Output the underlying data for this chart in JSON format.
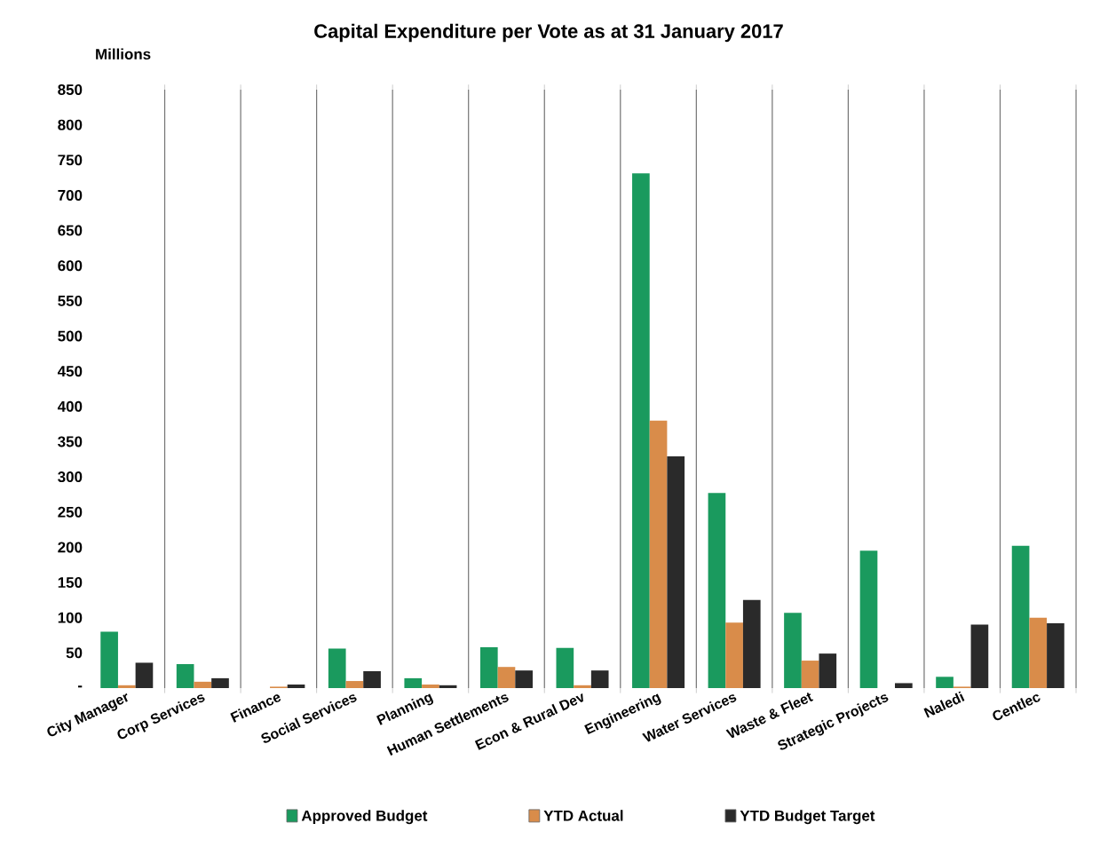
{
  "chart_data": {
    "type": "bar",
    "title": "Capital Expenditure  per Vote as at 31 January 2017",
    "ylabel": "Millions",
    "categories": [
      "City Manager",
      "Corp Services",
      "Finance",
      "Social Services",
      "Planning",
      "Human Settlements",
      "Econ & Rural Dev",
      "Engineering",
      "Water Services",
      "Waste & Fleet",
      "Strategic Projects",
      "Naledi",
      "Centlec"
    ],
    "series": [
      {
        "name": "Approved Budget",
        "color": "#1a9a5e",
        "values": [
          80,
          34,
          null,
          56,
          14,
          58,
          57,
          731,
          277,
          107,
          195,
          16,
          202
        ]
      },
      {
        "name": "YTD Actual",
        "color": "#d98c4a",
        "values": [
          4,
          9,
          2,
          10,
          5,
          30,
          4,
          380,
          93,
          39,
          null,
          2,
          100
        ]
      },
      {
        "name": "YTD Budget Target",
        "color": "#2a2a2a",
        "values": [
          36,
          14,
          5,
          24,
          4,
          25,
          25,
          329,
          125,
          49,
          7,
          90,
          92
        ]
      }
    ],
    "ylim": [
      0,
      850
    ],
    "yticks": [
      {
        "value": 0,
        "label": "-"
      },
      50,
      100,
      150,
      200,
      250,
      300,
      350,
      400,
      450,
      500,
      550,
      600,
      650,
      700,
      750,
      800,
      850
    ],
    "grid": "x",
    "legend": "bottom"
  }
}
